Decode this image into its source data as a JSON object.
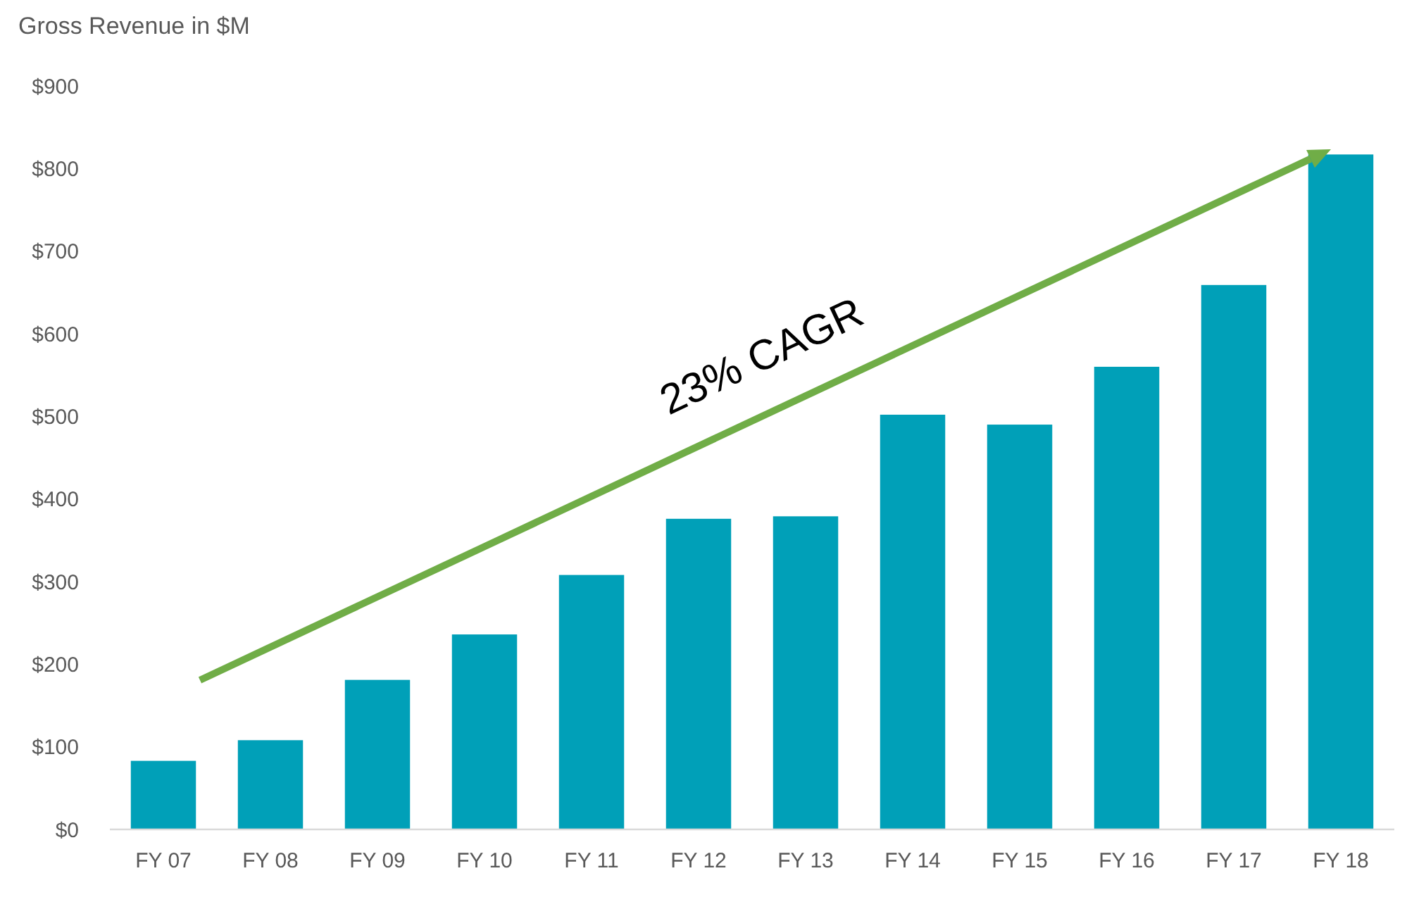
{
  "chart_data": {
    "type": "bar",
    "title": "Gross Revenue in $M",
    "categories": [
      "FY 07",
      "FY 08",
      "FY 09",
      "FY 10",
      "FY 11",
      "FY 12",
      "FY 13",
      "FY 14",
      "FY 15",
      "FY 16",
      "FY 17",
      "FY 18"
    ],
    "values": [
      83,
      108,
      181,
      236,
      308,
      376,
      379,
      502,
      490,
      560,
      659,
      817
    ],
    "color": "#00a0b8",
    "ylim": [
      0,
      900
    ],
    "yticks": [
      {
        "value": 0,
        "label": "$0"
      },
      {
        "value": 100,
        "label": "$100"
      },
      {
        "value": 200,
        "label": "$200"
      },
      {
        "value": 300,
        "label": "$300"
      },
      {
        "value": 400,
        "label": "$400"
      },
      {
        "value": 500,
        "label": "$500"
      },
      {
        "value": 600,
        "label": "$600"
      },
      {
        "value": 700,
        "label": "$700"
      },
      {
        "value": 800,
        "label": "$800"
      },
      {
        "value": 900,
        "label": "$900"
      }
    ],
    "grid": false,
    "annotations": [
      "23% CAGR"
    ]
  }
}
